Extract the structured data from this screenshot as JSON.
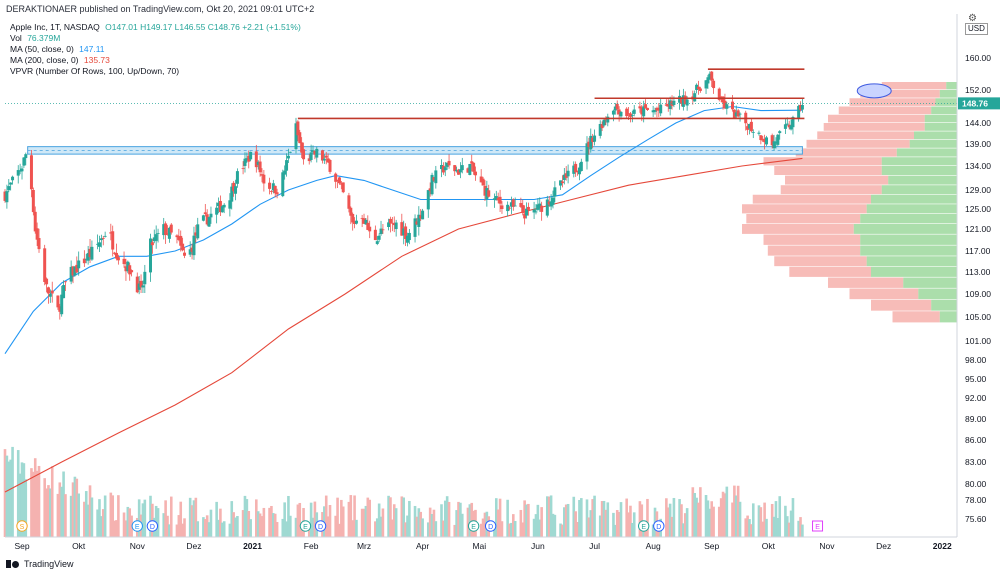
{
  "header": {
    "published": "DERAKTIONAER published on TradingView.com, Okt 20, 2021 09:01 UTC+2",
    "currency": "USD",
    "footer_brand": "TradingView"
  },
  "legend": {
    "symbol": "Apple Inc, 1T, NASDAQ",
    "ohlc": "O147.01 H149.17 L146.55 C148.76 +2.21 (+1.51%)",
    "vol_label": "Vol",
    "vol_value": "76.379M",
    "ma50_label": "MA (50, close, 0)",
    "ma50_value": "147.11",
    "ma200_label": "MA (200, close, 0)",
    "ma200_value": "135.73",
    "vpvr_label": "VPVR (Number Of Rows, 100, Up/Down, 70)"
  },
  "chart_data": {
    "type": "candlestick",
    "y_ticks": [
      "160.00",
      "152.00",
      "148.76",
      "144.00",
      "139.00",
      "134.00",
      "129.00",
      "125.00",
      "121.00",
      "117.00",
      "113.00",
      "109.00",
      "105.00",
      "101.00",
      "98.00",
      "95.00",
      "92.00",
      "89.00",
      "86.00",
      "83.00",
      "80.00",
      "78.00",
      "75.60"
    ],
    "price_axis": [
      {
        "label": "160.00",
        "price": 160
      },
      {
        "label": "152.00",
        "price": 152
      },
      {
        "label": "144.00",
        "price": 144
      },
      {
        "label": "139.00",
        "price": 139
      },
      {
        "label": "134.00",
        "price": 134
      },
      {
        "label": "129.00",
        "price": 129
      },
      {
        "label": "125.00",
        "price": 125
      },
      {
        "label": "121.00",
        "price": 121
      },
      {
        "label": "117.00",
        "price": 117
      },
      {
        "label": "113.00",
        "price": 113
      },
      {
        "label": "109.00",
        "price": 109
      },
      {
        "label": "105.00",
        "price": 105
      },
      {
        "label": "101.00",
        "price": 101
      },
      {
        "label": "98.00",
        "price": 98
      },
      {
        "label": "95.00",
        "price": 95
      },
      {
        "label": "92.00",
        "price": 92
      },
      {
        "label": "89.00",
        "price": 89
      },
      {
        "label": "86.00",
        "price": 86
      },
      {
        "label": "83.00",
        "price": 83
      },
      {
        "label": "80.00",
        "price": 80
      },
      {
        "label": "78.00",
        "price": 78
      },
      {
        "label": "75.60",
        "price": 75.6
      }
    ],
    "last_price": {
      "label": "148.76",
      "price": 148.76,
      "color": "#26a69a"
    },
    "x_ticks": [
      {
        "label": "Sep",
        "day": 9
      },
      {
        "label": "Okt",
        "day": 39
      },
      {
        "label": "Nov",
        "day": 70
      },
      {
        "label": "Dez",
        "day": 100
      },
      {
        "label": "2021",
        "day": 131,
        "bold": true
      },
      {
        "label": "Feb",
        "day": 162
      },
      {
        "label": "Mrz",
        "day": 190
      },
      {
        "label": "Apr",
        "day": 221
      },
      {
        "label": "Mai",
        "day": 251
      },
      {
        "label": "Jun",
        "day": 282
      },
      {
        "label": "Jul",
        "day": 312
      },
      {
        "label": "Aug",
        "day": 343
      },
      {
        "label": "Sep",
        "day": 374
      },
      {
        "label": "Okt",
        "day": 404
      },
      {
        "label": "Nov",
        "day": 435
      },
      {
        "label": "Dez",
        "day": 465
      },
      {
        "label": "2022",
        "day": 496,
        "bold": true
      }
    ],
    "start_date": "2020-08-24",
    "last_day": 422,
    "price_path": [
      {
        "day": 0,
        "price": 128
      },
      {
        "day": 9,
        "price": 134
      },
      {
        "day": 12,
        "price": 138
      },
      {
        "day": 16,
        "price": 121
      },
      {
        "day": 22,
        "price": 110
      },
      {
        "day": 28,
        "price": 106
      },
      {
        "day": 33,
        "price": 112
      },
      {
        "day": 41,
        "price": 115
      },
      {
        "day": 47,
        "price": 117
      },
      {
        "day": 54,
        "price": 121
      },
      {
        "day": 60,
        "price": 116
      },
      {
        "day": 67,
        "price": 113
      },
      {
        "day": 72,
        "price": 109
      },
      {
        "day": 77,
        "price": 118
      },
      {
        "day": 84,
        "price": 121
      },
      {
        "day": 91,
        "price": 119
      },
      {
        "day": 96,
        "price": 115
      },
      {
        "day": 103,
        "price": 122
      },
      {
        "day": 110,
        "price": 124
      },
      {
        "day": 118,
        "price": 127
      },
      {
        "day": 124,
        "price": 133
      },
      {
        "day": 131,
        "price": 137
      },
      {
        "day": 138,
        "price": 130
      },
      {
        "day": 145,
        "price": 129
      },
      {
        "day": 150,
        "price": 136
      },
      {
        "day": 154,
        "price": 143
      },
      {
        "day": 158,
        "price": 135
      },
      {
        "day": 165,
        "price": 137
      },
      {
        "day": 172,
        "price": 134
      },
      {
        "day": 179,
        "price": 128
      },
      {
        "day": 184,
        "price": 122
      },
      {
        "day": 189,
        "price": 124
      },
      {
        "day": 194,
        "price": 119
      },
      {
        "day": 201,
        "price": 121
      },
      {
        "day": 207,
        "price": 122
      },
      {
        "day": 213,
        "price": 120
      },
      {
        "day": 220,
        "price": 124
      },
      {
        "day": 226,
        "price": 131
      },
      {
        "day": 233,
        "price": 134
      },
      {
        "day": 240,
        "price": 133
      },
      {
        "day": 246,
        "price": 134
      },
      {
        "day": 252,
        "price": 130
      },
      {
        "day": 258,
        "price": 127
      },
      {
        "day": 264,
        "price": 126
      },
      {
        "day": 270,
        "price": 125
      },
      {
        "day": 276,
        "price": 124
      },
      {
        "day": 282,
        "price": 125
      },
      {
        "day": 288,
        "price": 127
      },
      {
        "day": 296,
        "price": 131
      },
      {
        "day": 303,
        "price": 134
      },
      {
        "day": 310,
        "price": 140
      },
      {
        "day": 316,
        "price": 144
      },
      {
        "day": 322,
        "price": 148
      },
      {
        "day": 330,
        "price": 146
      },
      {
        "day": 338,
        "price": 147
      },
      {
        "day": 346,
        "price": 147
      },
      {
        "day": 354,
        "price": 149
      },
      {
        "day": 362,
        "price": 150
      },
      {
        "day": 368,
        "price": 153
      },
      {
        "day": 373,
        "price": 155
      },
      {
        "day": 379,
        "price": 149
      },
      {
        "day": 386,
        "price": 146
      },
      {
        "day": 392,
        "price": 144
      },
      {
        "day": 400,
        "price": 141
      },
      {
        "day": 406,
        "price": 139
      },
      {
        "day": 412,
        "price": 142
      },
      {
        "day": 418,
        "price": 145
      },
      {
        "day": 422,
        "price": 148.76
      }
    ],
    "ma50_path": [
      {
        "day": 0,
        "price": 99
      },
      {
        "day": 15,
        "price": 106
      },
      {
        "day": 30,
        "price": 111
      },
      {
        "day": 45,
        "price": 114
      },
      {
        "day": 60,
        "price": 116
      },
      {
        "day": 75,
        "price": 116
      },
      {
        "day": 90,
        "price": 117
      },
      {
        "day": 105,
        "price": 119
      },
      {
        "day": 120,
        "price": 122
      },
      {
        "day": 135,
        "price": 126
      },
      {
        "day": 150,
        "price": 129
      },
      {
        "day": 165,
        "price": 131
      },
      {
        "day": 175,
        "price": 132
      },
      {
        "day": 190,
        "price": 131
      },
      {
        "day": 205,
        "price": 129
      },
      {
        "day": 220,
        "price": 127
      },
      {
        "day": 235,
        "price": 127
      },
      {
        "day": 250,
        "price": 127
      },
      {
        "day": 265,
        "price": 127
      },
      {
        "day": 280,
        "price": 127
      },
      {
        "day": 295,
        "price": 128
      },
      {
        "day": 310,
        "price": 132
      },
      {
        "day": 325,
        "price": 136
      },
      {
        "day": 340,
        "price": 140
      },
      {
        "day": 355,
        "price": 144
      },
      {
        "day": 370,
        "price": 147
      },
      {
        "day": 385,
        "price": 148
      },
      {
        "day": 400,
        "price": 147
      },
      {
        "day": 422,
        "price": 147.11
      }
    ],
    "ma200_path": [
      {
        "day": 0,
        "price": 79
      },
      {
        "day": 30,
        "price": 83
      },
      {
        "day": 60,
        "price": 87
      },
      {
        "day": 90,
        "price": 91
      },
      {
        "day": 120,
        "price": 96
      },
      {
        "day": 150,
        "price": 103
      },
      {
        "day": 180,
        "price": 109
      },
      {
        "day": 210,
        "price": 116
      },
      {
        "day": 240,
        "price": 121
      },
      {
        "day": 270,
        "price": 124
      },
      {
        "day": 300,
        "price": 127
      },
      {
        "day": 330,
        "price": 130
      },
      {
        "day": 360,
        "price": 132
      },
      {
        "day": 390,
        "price": 134
      },
      {
        "day": 422,
        "price": 135.73
      }
    ],
    "horizontal_lines": [
      {
        "price": 157.2,
        "from_day": 372,
        "to_day": 422,
        "color": "#c0392b"
      },
      {
        "price": 150.0,
        "from_day": 312,
        "to_day": 422,
        "color": "#c0392b"
      },
      {
        "price": 145.1,
        "from_day": 155,
        "to_day": 422,
        "color": "#c0392b"
      }
    ],
    "support_zone": {
      "from_price": 136.7,
      "to_price": 138.4,
      "from_day": 12,
      "to_day": 422,
      "fill": "#cfe8f7",
      "border": "#4aa3df"
    },
    "dashed_line": {
      "price": 148.76,
      "color": "#26a69a"
    },
    "ellipse_annotation": {
      "day": 460,
      "price": 151.8
    },
    "events": [
      {
        "letter": "S",
        "day": 9,
        "color": "#f5a623"
      },
      {
        "letter": "E",
        "day": 70,
        "color": "#2196f3"
      },
      {
        "letter": "D",
        "day": 78,
        "color": "#2962ff"
      },
      {
        "letter": "E",
        "day": 159,
        "color": "#26a69a"
      },
      {
        "letter": "D",
        "day": 167,
        "color": "#2962ff"
      },
      {
        "letter": "E",
        "day": 248,
        "color": "#26a69a"
      },
      {
        "letter": "D",
        "day": 257,
        "color": "#2962ff"
      },
      {
        "letter": "E",
        "day": 338,
        "color": "#26a69a"
      },
      {
        "letter": "D",
        "day": 346,
        "color": "#2962ff"
      },
      {
        "letter": "E",
        "day": 430,
        "color": "#e040fb"
      }
    ],
    "vpvr_profile": [
      {
        "price": 153,
        "up": 0.05,
        "down": 0.35
      },
      {
        "price": 151,
        "up": 0.08,
        "down": 0.45
      },
      {
        "price": 149,
        "up": 0.1,
        "down": 0.5
      },
      {
        "price": 147,
        "up": 0.12,
        "down": 0.55
      },
      {
        "price": 145,
        "up": 0.15,
        "down": 0.6
      },
      {
        "price": 143,
        "up": 0.15,
        "down": 0.62
      },
      {
        "price": 141,
        "up": 0.2,
        "down": 0.65
      },
      {
        "price": 139,
        "up": 0.22,
        "down": 0.7
      },
      {
        "price": 137,
        "up": 0.28,
        "down": 0.75
      },
      {
        "price": 135,
        "up": 0.35,
        "down": 0.9
      },
      {
        "price": 133,
        "up": 0.35,
        "down": 0.85
      },
      {
        "price": 131,
        "up": 0.32,
        "down": 0.8
      },
      {
        "price": 129,
        "up": 0.35,
        "down": 0.82
      },
      {
        "price": 127,
        "up": 0.4,
        "down": 0.95
      },
      {
        "price": 125,
        "up": 0.42,
        "down": 1.0
      },
      {
        "price": 123,
        "up": 0.45,
        "down": 0.98
      },
      {
        "price": 121,
        "up": 0.48,
        "down": 1.0
      },
      {
        "price": 119,
        "up": 0.45,
        "down": 0.9
      },
      {
        "price": 117,
        "up": 0.45,
        "down": 0.88
      },
      {
        "price": 115,
        "up": 0.42,
        "down": 0.85
      },
      {
        "price": 113,
        "up": 0.4,
        "down": 0.78
      },
      {
        "price": 111,
        "up": 0.25,
        "down": 0.6
      },
      {
        "price": 109,
        "up": 0.18,
        "down": 0.5
      },
      {
        "price": 107,
        "up": 0.12,
        "down": 0.4
      },
      {
        "price": 105,
        "up": 0.08,
        "down": 0.3
      }
    ]
  }
}
